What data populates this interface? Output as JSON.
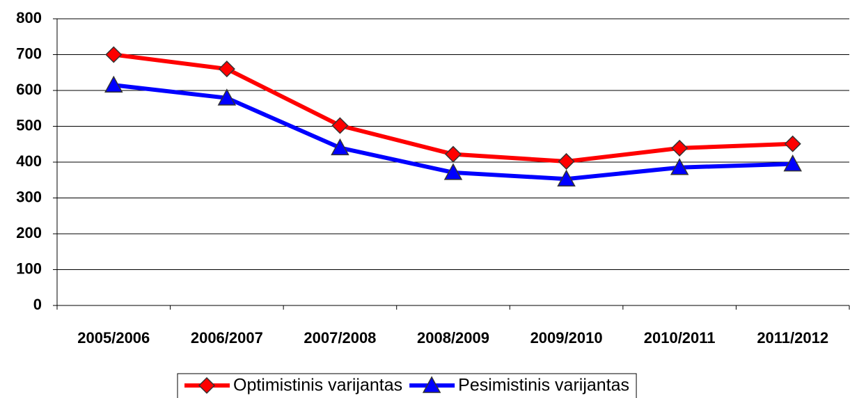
{
  "chart_data": {
    "type": "line",
    "categories": [
      "2005/2006",
      "2006/2007",
      "2007/2008",
      "2008/2009",
      "2009/2010",
      "2010/2011",
      "2011/2012"
    ],
    "series": [
      {
        "name": "Optimistinis varijantas",
        "color": "#ff0000",
        "marker": "diamond",
        "values": [
          700,
          660,
          502,
          422,
          402,
          439,
          451
        ]
      },
      {
        "name": "Pesimistinis varijantas",
        "color": "#0000ff",
        "marker": "triangle",
        "values": [
          615,
          579,
          440,
          371,
          353,
          385,
          395
        ]
      }
    ],
    "ylim": [
      0,
      800
    ],
    "yticks": [
      0,
      100,
      200,
      300,
      400,
      500,
      600,
      700,
      800
    ],
    "grid": true,
    "legend": "bottom"
  }
}
